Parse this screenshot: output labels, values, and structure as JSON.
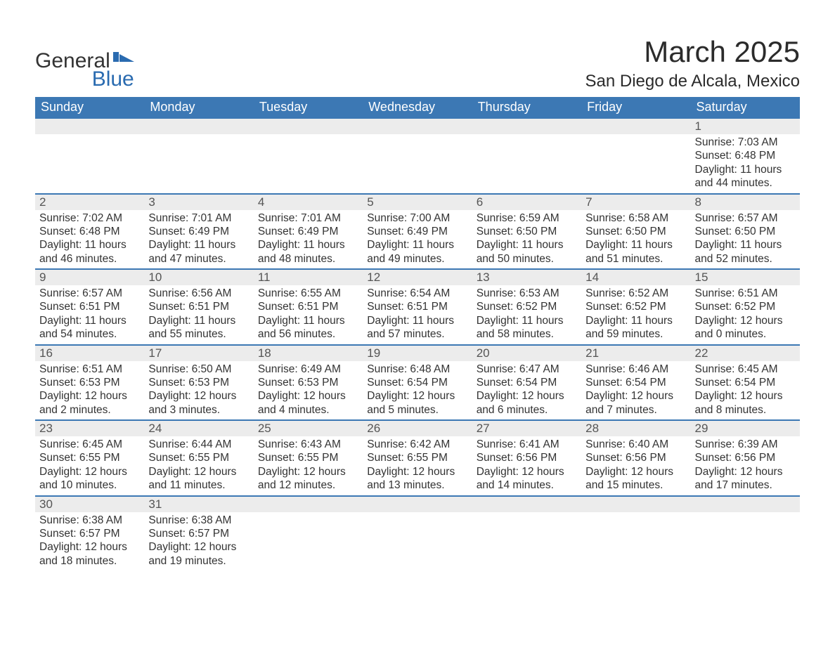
{
  "logo": {
    "word1": "General",
    "word2": "Blue"
  },
  "title": "March 2025",
  "location": "San Diego de Alcala, Mexico",
  "colors": {
    "header_bg": "#3c78b4",
    "header_text": "#ffffff",
    "daynum_bg": "#ececec",
    "row_border": "#3c78b4",
    "text": "#333333",
    "logo_accent": "#2a6bb0"
  },
  "day_headers": [
    "Sunday",
    "Monday",
    "Tuesday",
    "Wednesday",
    "Thursday",
    "Friday",
    "Saturday"
  ],
  "weeks": [
    {
      "nums": [
        "",
        "",
        "",
        "",
        "",
        "",
        "1"
      ],
      "cells": [
        null,
        null,
        null,
        null,
        null,
        null,
        {
          "sunrise": "Sunrise: 7:03 AM",
          "sunset": "Sunset: 6:48 PM",
          "d1": "Daylight: 11 hours",
          "d2": "and 44 minutes."
        }
      ]
    },
    {
      "nums": [
        "2",
        "3",
        "4",
        "5",
        "6",
        "7",
        "8"
      ],
      "cells": [
        {
          "sunrise": "Sunrise: 7:02 AM",
          "sunset": "Sunset: 6:48 PM",
          "d1": "Daylight: 11 hours",
          "d2": "and 46 minutes."
        },
        {
          "sunrise": "Sunrise: 7:01 AM",
          "sunset": "Sunset: 6:49 PM",
          "d1": "Daylight: 11 hours",
          "d2": "and 47 minutes."
        },
        {
          "sunrise": "Sunrise: 7:01 AM",
          "sunset": "Sunset: 6:49 PM",
          "d1": "Daylight: 11 hours",
          "d2": "and 48 minutes."
        },
        {
          "sunrise": "Sunrise: 7:00 AM",
          "sunset": "Sunset: 6:49 PM",
          "d1": "Daylight: 11 hours",
          "d2": "and 49 minutes."
        },
        {
          "sunrise": "Sunrise: 6:59 AM",
          "sunset": "Sunset: 6:50 PM",
          "d1": "Daylight: 11 hours",
          "d2": "and 50 minutes."
        },
        {
          "sunrise": "Sunrise: 6:58 AM",
          "sunset": "Sunset: 6:50 PM",
          "d1": "Daylight: 11 hours",
          "d2": "and 51 minutes."
        },
        {
          "sunrise": "Sunrise: 6:57 AM",
          "sunset": "Sunset: 6:50 PM",
          "d1": "Daylight: 11 hours",
          "d2": "and 52 minutes."
        }
      ]
    },
    {
      "nums": [
        "9",
        "10",
        "11",
        "12",
        "13",
        "14",
        "15"
      ],
      "cells": [
        {
          "sunrise": "Sunrise: 6:57 AM",
          "sunset": "Sunset: 6:51 PM",
          "d1": "Daylight: 11 hours",
          "d2": "and 54 minutes."
        },
        {
          "sunrise": "Sunrise: 6:56 AM",
          "sunset": "Sunset: 6:51 PM",
          "d1": "Daylight: 11 hours",
          "d2": "and 55 minutes."
        },
        {
          "sunrise": "Sunrise: 6:55 AM",
          "sunset": "Sunset: 6:51 PM",
          "d1": "Daylight: 11 hours",
          "d2": "and 56 minutes."
        },
        {
          "sunrise": "Sunrise: 6:54 AM",
          "sunset": "Sunset: 6:51 PM",
          "d1": "Daylight: 11 hours",
          "d2": "and 57 minutes."
        },
        {
          "sunrise": "Sunrise: 6:53 AM",
          "sunset": "Sunset: 6:52 PM",
          "d1": "Daylight: 11 hours",
          "d2": "and 58 minutes."
        },
        {
          "sunrise": "Sunrise: 6:52 AM",
          "sunset": "Sunset: 6:52 PM",
          "d1": "Daylight: 11 hours",
          "d2": "and 59 minutes."
        },
        {
          "sunrise": "Sunrise: 6:51 AM",
          "sunset": "Sunset: 6:52 PM",
          "d1": "Daylight: 12 hours",
          "d2": "and 0 minutes."
        }
      ]
    },
    {
      "nums": [
        "16",
        "17",
        "18",
        "19",
        "20",
        "21",
        "22"
      ],
      "cells": [
        {
          "sunrise": "Sunrise: 6:51 AM",
          "sunset": "Sunset: 6:53 PM",
          "d1": "Daylight: 12 hours",
          "d2": "and 2 minutes."
        },
        {
          "sunrise": "Sunrise: 6:50 AM",
          "sunset": "Sunset: 6:53 PM",
          "d1": "Daylight: 12 hours",
          "d2": "and 3 minutes."
        },
        {
          "sunrise": "Sunrise: 6:49 AM",
          "sunset": "Sunset: 6:53 PM",
          "d1": "Daylight: 12 hours",
          "d2": "and 4 minutes."
        },
        {
          "sunrise": "Sunrise: 6:48 AM",
          "sunset": "Sunset: 6:54 PM",
          "d1": "Daylight: 12 hours",
          "d2": "and 5 minutes."
        },
        {
          "sunrise": "Sunrise: 6:47 AM",
          "sunset": "Sunset: 6:54 PM",
          "d1": "Daylight: 12 hours",
          "d2": "and 6 minutes."
        },
        {
          "sunrise": "Sunrise: 6:46 AM",
          "sunset": "Sunset: 6:54 PM",
          "d1": "Daylight: 12 hours",
          "d2": "and 7 minutes."
        },
        {
          "sunrise": "Sunrise: 6:45 AM",
          "sunset": "Sunset: 6:54 PM",
          "d1": "Daylight: 12 hours",
          "d2": "and 8 minutes."
        }
      ]
    },
    {
      "nums": [
        "23",
        "24",
        "25",
        "26",
        "27",
        "28",
        "29"
      ],
      "cells": [
        {
          "sunrise": "Sunrise: 6:45 AM",
          "sunset": "Sunset: 6:55 PM",
          "d1": "Daylight: 12 hours",
          "d2": "and 10 minutes."
        },
        {
          "sunrise": "Sunrise: 6:44 AM",
          "sunset": "Sunset: 6:55 PM",
          "d1": "Daylight: 12 hours",
          "d2": "and 11 minutes."
        },
        {
          "sunrise": "Sunrise: 6:43 AM",
          "sunset": "Sunset: 6:55 PM",
          "d1": "Daylight: 12 hours",
          "d2": "and 12 minutes."
        },
        {
          "sunrise": "Sunrise: 6:42 AM",
          "sunset": "Sunset: 6:55 PM",
          "d1": "Daylight: 12 hours",
          "d2": "and 13 minutes."
        },
        {
          "sunrise": "Sunrise: 6:41 AM",
          "sunset": "Sunset: 6:56 PM",
          "d1": "Daylight: 12 hours",
          "d2": "and 14 minutes."
        },
        {
          "sunrise": "Sunrise: 6:40 AM",
          "sunset": "Sunset: 6:56 PM",
          "d1": "Daylight: 12 hours",
          "d2": "and 15 minutes."
        },
        {
          "sunrise": "Sunrise: 6:39 AM",
          "sunset": "Sunset: 6:56 PM",
          "d1": "Daylight: 12 hours",
          "d2": "and 17 minutes."
        }
      ]
    },
    {
      "nums": [
        "30",
        "31",
        "",
        "",
        "",
        "",
        ""
      ],
      "cells": [
        {
          "sunrise": "Sunrise: 6:38 AM",
          "sunset": "Sunset: 6:57 PM",
          "d1": "Daylight: 12 hours",
          "d2": "and 18 minutes."
        },
        {
          "sunrise": "Sunrise: 6:38 AM",
          "sunset": "Sunset: 6:57 PM",
          "d1": "Daylight: 12 hours",
          "d2": "and 19 minutes."
        },
        null,
        null,
        null,
        null,
        null
      ]
    }
  ]
}
